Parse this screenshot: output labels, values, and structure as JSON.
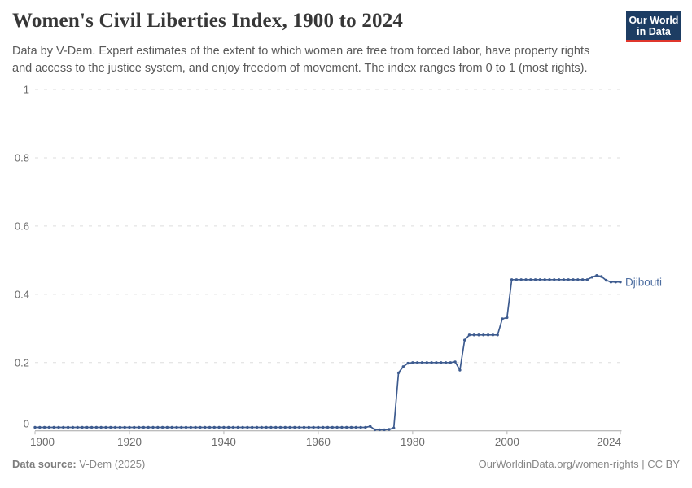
{
  "header": {
    "title": "Women's Civil Liberties Index, 1900 to 2024",
    "subtitle_lines": [
      "Data by V-Dem. Expert estimates of the extent to which women are free from forced labor, have property rights",
      "and access to the justice system, and enjoy freedom of movement. The index ranges from 0 to 1 (most rights)."
    ],
    "logo": {
      "line1": "Our World",
      "line2": "in Data",
      "bg": "#1d3d63",
      "accent": "#e0362c"
    }
  },
  "chart_data": {
    "type": "line",
    "title": "Women's Civil Liberties Index, 1900 to 2024",
    "xlabel": "",
    "ylabel": "",
    "x_start": 1900,
    "x_end": 2024,
    "ylim": [
      0,
      1
    ],
    "yticks": [
      0,
      0.2,
      0.4,
      0.6,
      0.8,
      1
    ],
    "ytick_labels": [
      "0",
      "0.2",
      "0.4",
      "0.6",
      "0.8",
      "1"
    ],
    "xticks": [
      1900,
      1920,
      1940,
      1960,
      1980,
      2000,
      2024
    ],
    "grid": "horizontal-dashed",
    "legend_position": "end-of-line-label",
    "series": [
      {
        "name": "Djibouti",
        "color": "#3d5b8f",
        "label_color": "#4d6da0",
        "values": [
          0.01,
          0.01,
          0.01,
          0.01,
          0.01,
          0.01,
          0.01,
          0.01,
          0.01,
          0.01,
          0.01,
          0.01,
          0.01,
          0.01,
          0.01,
          0.01,
          0.01,
          0.01,
          0.01,
          0.01,
          0.01,
          0.01,
          0.01,
          0.01,
          0.01,
          0.01,
          0.01,
          0.01,
          0.01,
          0.01,
          0.01,
          0.01,
          0.01,
          0.01,
          0.01,
          0.01,
          0.01,
          0.01,
          0.01,
          0.01,
          0.01,
          0.01,
          0.01,
          0.01,
          0.01,
          0.01,
          0.01,
          0.01,
          0.01,
          0.01,
          0.01,
          0.01,
          0.01,
          0.01,
          0.01,
          0.01,
          0.01,
          0.01,
          0.01,
          0.01,
          0.01,
          0.01,
          0.01,
          0.01,
          0.01,
          0.01,
          0.01,
          0.01,
          0.01,
          0.01,
          0.01,
          0.013,
          0.003,
          0.003,
          0.003,
          0.004,
          0.008,
          0.17,
          0.188,
          0.198,
          0.2,
          0.2,
          0.2,
          0.2,
          0.2,
          0.2,
          0.2,
          0.2,
          0.2,
          0.202,
          0.178,
          0.266,
          0.281,
          0.281,
          0.281,
          0.281,
          0.281,
          0.281,
          0.281,
          0.328,
          0.332,
          0.443,
          0.443,
          0.443,
          0.443,
          0.443,
          0.443,
          0.443,
          0.443,
          0.443,
          0.443,
          0.443,
          0.443,
          0.443,
          0.443,
          0.443,
          0.443,
          0.443,
          0.45,
          0.455,
          0.452,
          0.441,
          0.436,
          0.436,
          0.436
        ]
      }
    ],
    "style": {
      "gridline_color": "#dedede",
      "axis_color": "#a6a6a6",
      "tick_color": "#b3b3b3",
      "tick_label_color": "#6b6b6b"
    }
  },
  "footer": {
    "source_label": "Data source:",
    "source_value": " V-Dem (2025)",
    "credit": "OurWorldinData.org/women-rights | CC BY"
  }
}
